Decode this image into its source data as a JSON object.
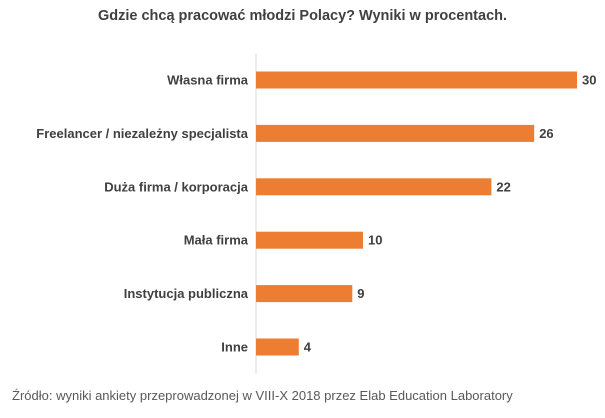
{
  "chart_data": {
    "type": "bar",
    "orientation": "horizontal",
    "title": "Gdzie chcą pracować młodzi Polacy? Wyniki w procentach.",
    "categories": [
      "Własna firma",
      "Freelancer / niezależny specjalista",
      "Duża firma / korporacja",
      "Mała firma",
      "Instytucja publiczna",
      "Inne"
    ],
    "values": [
      30,
      26,
      22,
      10,
      9,
      4
    ],
    "xlim": [
      0,
      30
    ],
    "grid": false,
    "legend": "none",
    "data_labels": true,
    "bar_color": "#ED7D31"
  },
  "source": "Źródło: wyniki ankiety przeprowadzonej w VIII-X 2018 przez Elab Education Laboratory"
}
